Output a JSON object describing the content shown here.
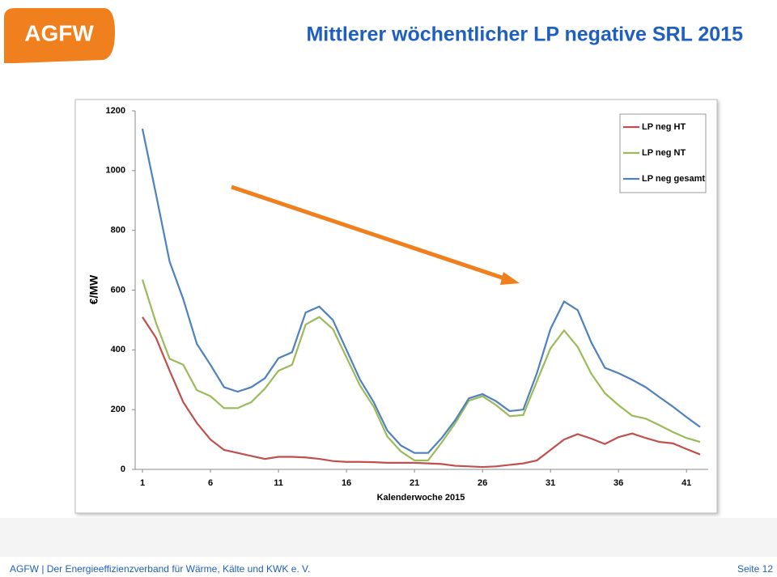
{
  "header": {
    "logo": "AGFW",
    "title": "Mittlerer wöchentlicher LP negative SRL 2015"
  },
  "chart_data": {
    "type": "line",
    "ylabel": "€/MW",
    "xlabel": "Kalenderwoche 2015",
    "x": [
      1,
      2,
      3,
      4,
      5,
      6,
      7,
      8,
      9,
      10,
      11,
      12,
      13,
      14,
      15,
      16,
      17,
      18,
      19,
      20,
      21,
      22,
      23,
      24,
      25,
      26,
      27,
      28,
      29,
      30,
      31,
      32,
      33,
      34,
      35,
      36,
      37,
      38,
      39,
      40,
      41,
      42
    ],
    "series": [
      {
        "name": "LP neg HT",
        "color": "#c0504d",
        "values": [
          510,
          440,
          330,
          225,
          155,
          100,
          65,
          55,
          45,
          35,
          42,
          42,
          40,
          35,
          28,
          25,
          25,
          24,
          22,
          22,
          22,
          20,
          18,
          12,
          10,
          8,
          10,
          15,
          20,
          30,
          65,
          100,
          118,
          103,
          85,
          108,
          120,
          105,
          92,
          87,
          68,
          50
        ]
      },
      {
        "name": "LP neg NT",
        "color": "#9bbb59",
        "values": [
          635,
          490,
          370,
          350,
          265,
          245,
          205,
          205,
          225,
          270,
          330,
          350,
          485,
          510,
          470,
          375,
          280,
          210,
          110,
          60,
          30,
          30,
          90,
          155,
          230,
          245,
          215,
          178,
          182,
          295,
          405,
          465,
          410,
          320,
          255,
          215,
          180,
          170,
          148,
          125,
          105,
          92
        ]
      },
      {
        "name": "LP neg gesamt",
        "color": "#4f81bd",
        "values": [
          1140,
          920,
          695,
          570,
          420,
          350,
          275,
          260,
          275,
          305,
          372,
          392,
          525,
          545,
          500,
          400,
          300,
          225,
          130,
          80,
          55,
          55,
          105,
          165,
          238,
          252,
          228,
          195,
          200,
          322,
          470,
          562,
          533,
          425,
          340,
          322,
          300,
          275,
          242,
          210,
          175,
          142
        ]
      }
    ],
    "xlim": [
      1,
      42
    ],
    "xticks": [
      1,
      6,
      11,
      16,
      21,
      26,
      31,
      36,
      41
    ],
    "ylim": [
      0,
      1200
    ],
    "yticks": [
      0,
      200,
      400,
      600,
      800,
      1000,
      1200
    ],
    "legend": "top-right"
  },
  "footer": {
    "left": "AGFW | Der Energieeffizienzverband für Wärme, Kälte und KWK e. V.",
    "right": "Seite 12"
  }
}
